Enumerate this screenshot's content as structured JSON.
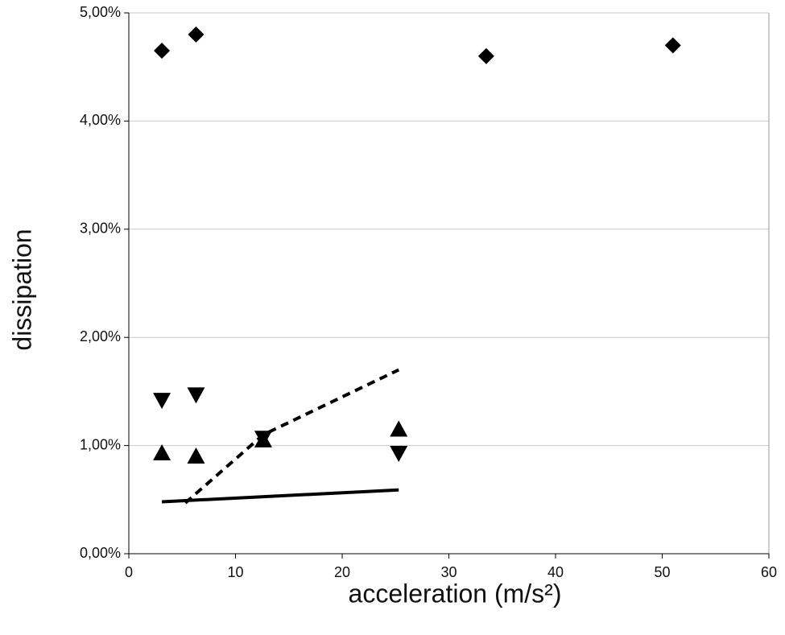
{
  "chart_data": {
    "type": "scatter",
    "xlabel": "acceleration (m/s²)",
    "ylabel": "dissipation",
    "xlim": [
      0,
      60
    ],
    "xticks": [
      0,
      10,
      20,
      30,
      40,
      50,
      60
    ],
    "ylim": [
      0,
      5
    ],
    "yticks": [
      {
        "value": 0,
        "label": "0,00%"
      },
      {
        "value": 1,
        "label": "1,00%"
      },
      {
        "value": 2,
        "label": "2,00%"
      },
      {
        "value": 3,
        "label": "3,00%"
      },
      {
        "value": 4,
        "label": "4,00%"
      },
      {
        "value": 5,
        "label": "5,00%"
      }
    ],
    "grid": true,
    "series": [
      {
        "marker": "diamond",
        "color": "#000000",
        "x": [
          3.1,
          6.3,
          33.5,
          51
        ],
        "values": [
          4.65,
          4.8,
          4.6,
          4.7
        ]
      },
      {
        "marker": "triangle-down",
        "color": "#000000",
        "x": [
          3.1,
          6.3,
          12.6,
          25.3
        ],
        "values": [
          1.42,
          1.47,
          1.07,
          0.93
        ]
      },
      {
        "marker": "triangle-up",
        "color": "#000000",
        "x": [
          3.1,
          6.3,
          12.6,
          25.3
        ],
        "values": [
          0.93,
          0.9,
          1.05,
          1.15
        ]
      },
      {
        "linestyle": "solid",
        "color": "#000000",
        "x": [
          3.1,
          25.3
        ],
        "values": [
          0.48,
          0.59
        ]
      },
      {
        "linestyle": "dashed",
        "color": "#000000",
        "x": [
          5.3,
          12.6,
          25.3
        ],
        "values": [
          0.47,
          1.1,
          1.7
        ]
      }
    ]
  }
}
